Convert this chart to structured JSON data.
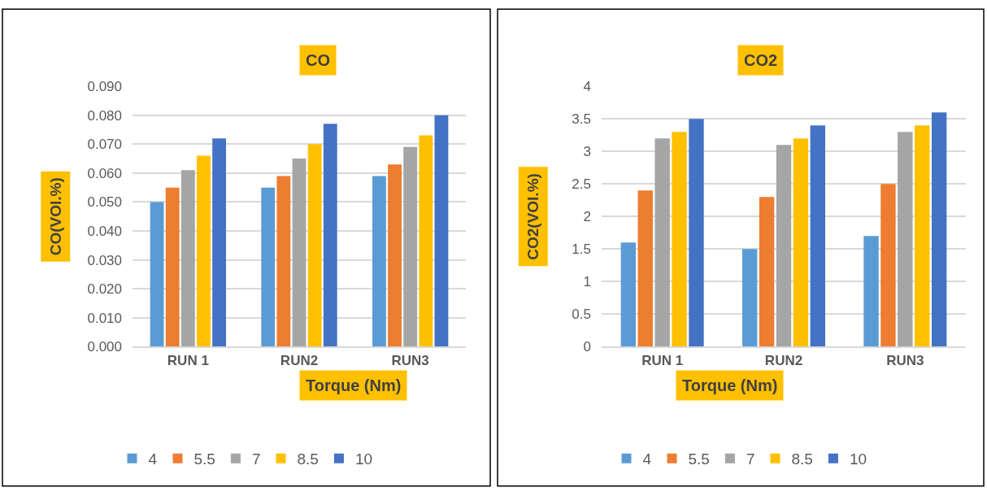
{
  "chart_data": [
    {
      "type": "bar",
      "title": "CO",
      "xlabel": "Torque (Nm)",
      "ylabel": "CO(VOl.%)",
      "categories": [
        "RUN 1",
        "RUN2",
        "RUN3"
      ],
      "series": [
        {
          "name": "4",
          "color": "#5b9bd5",
          "values": [
            0.05,
            0.055,
            0.059
          ]
        },
        {
          "name": "5.5",
          "color": "#ed7d31",
          "values": [
            0.055,
            0.059,
            0.063
          ]
        },
        {
          "name": "7",
          "color": "#a5a5a5",
          "values": [
            0.061,
            0.065,
            0.069
          ]
        },
        {
          "name": "8.5",
          "color": "#ffc000",
          "values": [
            0.066,
            0.07,
            0.073
          ]
        },
        {
          "name": "10",
          "color": "#4472c4",
          "values": [
            0.072,
            0.077,
            0.08
          ]
        }
      ],
      "ylim": [
        0,
        0.09
      ],
      "yticks": [
        {
          "value": 0,
          "label": "0.000"
        },
        {
          "value": 0.01,
          "label": "0.010"
        },
        {
          "value": 0.02,
          "label": "0.020"
        },
        {
          "value": 0.03,
          "label": "0.030"
        },
        {
          "value": 0.04,
          "label": "0.040"
        },
        {
          "value": 0.05,
          "label": "0.050"
        },
        {
          "value": 0.06,
          "label": "0.060"
        },
        {
          "value": 0.07,
          "label": "0.070"
        },
        {
          "value": 0.08,
          "label": "0.080"
        },
        {
          "value": 0.09,
          "label": "0.090"
        }
      ],
      "grid": "y",
      "legend": "bottom"
    },
    {
      "type": "bar",
      "title": "CO2",
      "xlabel": "Torque (Nm)",
      "ylabel": "CO2(VOl.%)",
      "categories": [
        "RUN 1",
        "RUN2",
        "RUN3"
      ],
      "series": [
        {
          "name": "4",
          "color": "#5b9bd5",
          "values": [
            1.6,
            1.5,
            1.7
          ]
        },
        {
          "name": "5.5",
          "color": "#ed7d31",
          "values": [
            2.4,
            2.3,
            2.5
          ]
        },
        {
          "name": "7",
          "color": "#a5a5a5",
          "values": [
            3.2,
            3.1,
            3.3
          ]
        },
        {
          "name": "8.5",
          "color": "#ffc000",
          "values": [
            3.3,
            3.2,
            3.4
          ]
        },
        {
          "name": "10",
          "color": "#4472c4",
          "values": [
            3.5,
            3.4,
            3.6
          ]
        }
      ],
      "ylim": [
        0,
        4
      ],
      "yticks": [
        0,
        0.5,
        1,
        1.5,
        2,
        2.5,
        3,
        3.5,
        4
      ],
      "grid": "y",
      "legend": "bottom"
    }
  ]
}
